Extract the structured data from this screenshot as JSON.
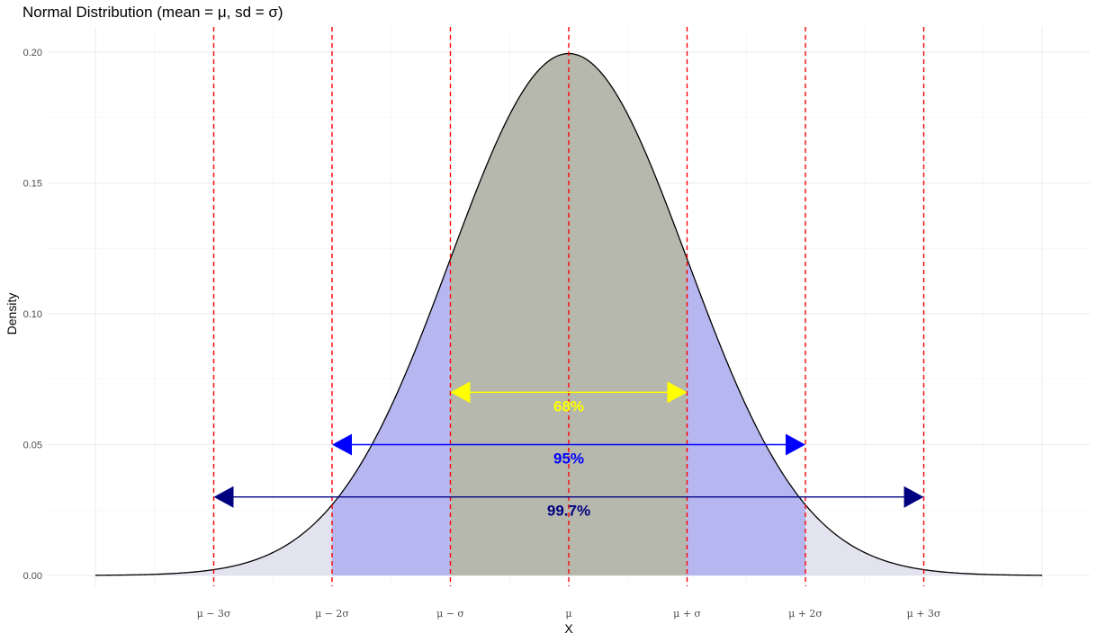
{
  "chart_data": {
    "type": "line",
    "title": "Normal Distribution (mean = μ, sd = σ)",
    "xlabel": "X",
    "ylabel": "Density",
    "mean": 0,
    "sd": 2,
    "xlim": [
      -8,
      8
    ],
    "ylim": [
      0,
      0.2
    ],
    "y_ticks": [
      {
        "value": 0.0,
        "label": "0.00"
      },
      {
        "value": 0.05,
        "label": "0.05"
      },
      {
        "value": 0.1,
        "label": "0.10"
      },
      {
        "value": 0.15,
        "label": "0.15"
      },
      {
        "value": 0.2,
        "label": "0.20"
      }
    ],
    "x_ticks": [
      {
        "value": -6,
        "label": "μ − 3σ"
      },
      {
        "value": -4,
        "label": "μ − 2σ"
      },
      {
        "value": -2,
        "label": "μ − σ"
      },
      {
        "value": 0,
        "label": "μ"
      },
      {
        "value": 2,
        "label": "μ + σ"
      },
      {
        "value": 4,
        "label": "μ + 2σ"
      },
      {
        "value": 6,
        "label": "μ + 3σ"
      }
    ],
    "minor_grid_x": [
      -7,
      -5,
      -3,
      -1,
      1,
      3,
      5,
      7
    ],
    "major_grid_x": [
      -8,
      -6,
      -4,
      -2,
      0,
      2,
      4,
      6,
      8
    ],
    "vlines": [
      -6,
      -4,
      -2,
      0,
      2,
      4,
      6
    ],
    "vline_color": "#ff0000",
    "curve_color": "#000000",
    "shaded_regions": [
      {
        "name": "outer",
        "from": -8,
        "to": 8,
        "color": "#e3e3f0"
      },
      {
        "name": "2sd",
        "from": -4,
        "to": 4,
        "color": "#b6b7f1"
      },
      {
        "name": "1sd",
        "from": -2,
        "to": 2,
        "color": "#b7b8ad"
      }
    ],
    "arrows": [
      {
        "label": "68%",
        "from": -2,
        "to": 2,
        "y": 0.07,
        "color": "#ffff00"
      },
      {
        "label": "95%",
        "from": -4,
        "to": 4,
        "y": 0.05,
        "color": "#0000ff"
      },
      {
        "label": "99.7%",
        "from": -6,
        "to": 6,
        "y": 0.03,
        "color": "#000080"
      }
    ]
  }
}
